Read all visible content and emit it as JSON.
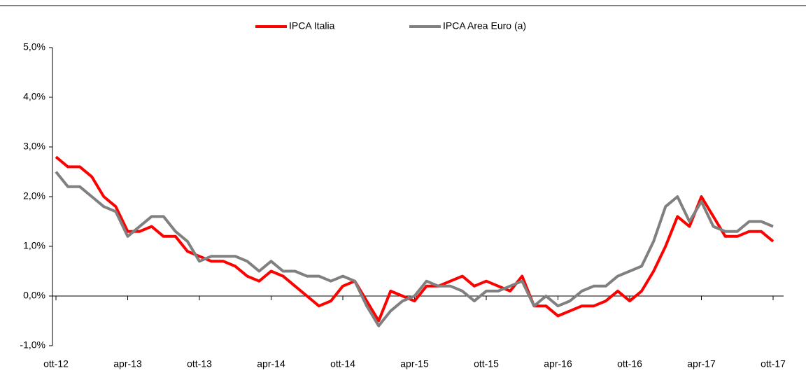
{
  "chart_data": {
    "type": "line",
    "categories": [
      "ott-12",
      null,
      null,
      null,
      null,
      null,
      "apr-13",
      null,
      null,
      null,
      null,
      null,
      "ott-13",
      null,
      null,
      null,
      null,
      null,
      "apr-14",
      null,
      null,
      null,
      null,
      null,
      "ott-14",
      null,
      null,
      null,
      null,
      null,
      "apr-15",
      null,
      null,
      null,
      null,
      null,
      "ott-15",
      null,
      null,
      null,
      null,
      null,
      "apr-16",
      null,
      null,
      null,
      null,
      null,
      "ott-16",
      null,
      null,
      null,
      null,
      null,
      "apr-17",
      null,
      null,
      null,
      null,
      null,
      "ott-17"
    ],
    "series": [
      {
        "name": "IPCA Italia",
        "color": "#ff0000",
        "values": [
          2.8,
          2.6,
          2.6,
          2.4,
          2.0,
          1.8,
          1.3,
          1.3,
          1.4,
          1.2,
          1.2,
          0.9,
          0.8,
          0.7,
          0.7,
          0.6,
          0.4,
          0.3,
          0.5,
          0.4,
          0.2,
          0.0,
          -0.2,
          -0.1,
          0.2,
          0.3,
          -0.1,
          -0.5,
          0.1,
          0.0,
          -0.1,
          0.2,
          0.2,
          0.3,
          0.4,
          0.2,
          0.3,
          0.2,
          0.1,
          0.4,
          -0.2,
          -0.2,
          -0.4,
          -0.3,
          -0.2,
          -0.2,
          -0.1,
          0.1,
          -0.1,
          0.1,
          0.5,
          1.0,
          1.6,
          1.4,
          2.0,
          1.6,
          1.2,
          1.2,
          1.3,
          1.3,
          1.1
        ]
      },
      {
        "name": "IPCA Area Euro (a)",
        "color": "#808080",
        "values": [
          2.5,
          2.2,
          2.2,
          2.0,
          1.8,
          1.7,
          1.2,
          1.4,
          1.6,
          1.6,
          1.3,
          1.1,
          0.7,
          0.8,
          0.8,
          0.8,
          0.7,
          0.5,
          0.7,
          0.5,
          0.5,
          0.4,
          0.4,
          0.3,
          0.4,
          0.3,
          -0.2,
          -0.6,
          -0.3,
          -0.1,
          0.0,
          0.3,
          0.2,
          0.2,
          0.1,
          -0.1,
          0.1,
          0.1,
          0.2,
          0.3,
          -0.2,
          0.0,
          -0.2,
          -0.1,
          0.1,
          0.2,
          0.2,
          0.4,
          0.5,
          0.6,
          1.1,
          1.8,
          2.0,
          1.5,
          1.9,
          1.4,
          1.3,
          1.3,
          1.5,
          1.5,
          1.4
        ]
      }
    ],
    "ylim": [
      -1,
      5
    ],
    "yticks": [
      {
        "value": -1,
        "label": "-1,0%"
      },
      {
        "value": 0,
        "label": "0,0%"
      },
      {
        "value": 1,
        "label": "1,0%"
      },
      {
        "value": 2,
        "label": "2,0%"
      },
      {
        "value": 3,
        "label": "3,0%"
      },
      {
        "value": 4,
        "label": "4,0%"
      },
      {
        "value": 5,
        "label": "5,0%"
      }
    ],
    "legend": "top"
  }
}
